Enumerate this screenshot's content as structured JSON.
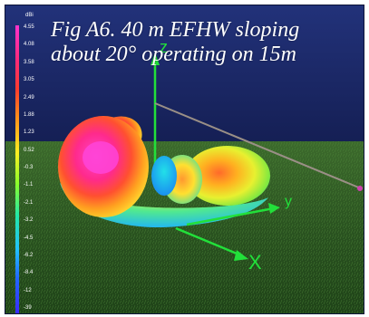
{
  "caption": {
    "line1": "Fig A6. 40 m EFHW sloping",
    "line2": "about 20° operating on 15m"
  },
  "scale": {
    "unit": "dBi",
    "ticks": [
      "4.55",
      "4.08",
      "3.58",
      "3.05",
      "2.49",
      "1.88",
      "1.23",
      "0.52",
      "-0.3",
      "-1.1",
      "-2.1",
      "-3.2",
      "-4.5",
      "-6.2",
      "-8.4",
      "-12",
      "-39"
    ]
  },
  "axes": {
    "z": "z",
    "y": "y",
    "x": "X"
  },
  "colors": {
    "sky": "#1a2a66",
    "ground": "#2f5a22",
    "axis": "#22e03a",
    "wire": "#9a8f86",
    "feedpoint": "#d040b0"
  }
}
